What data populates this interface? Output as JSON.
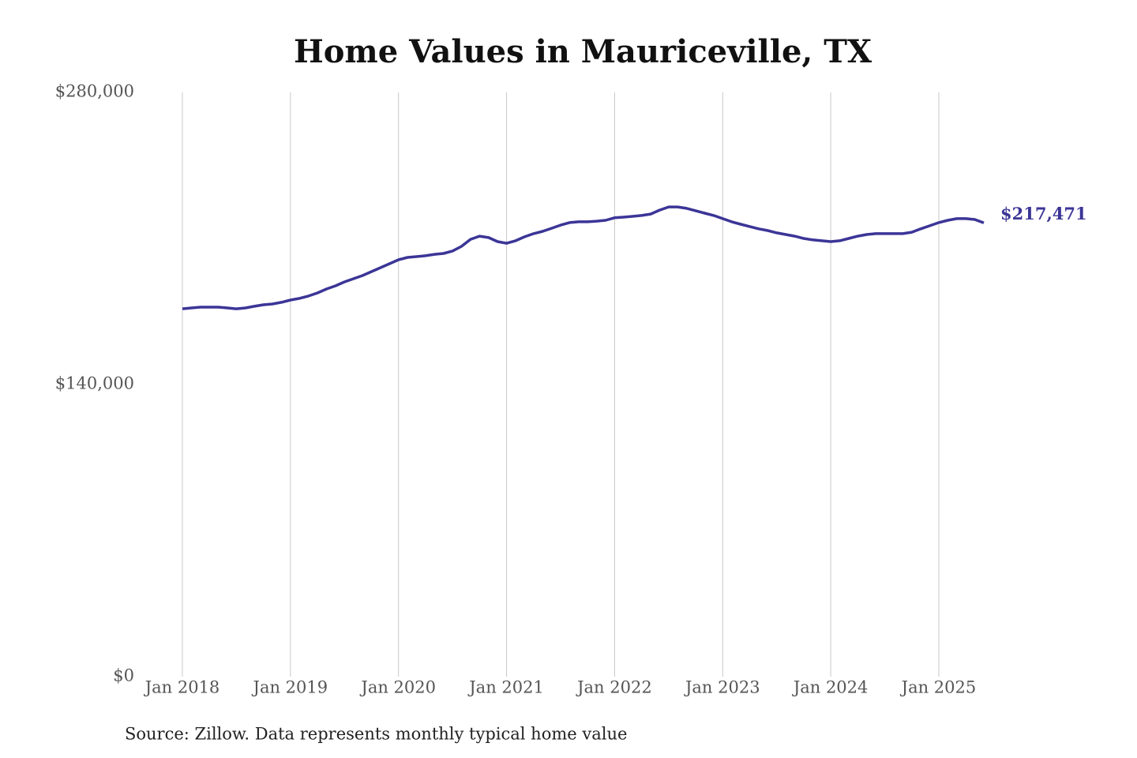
{
  "chart_data": {
    "type": "line",
    "title": "Home Values in Mauriceville, TX",
    "source": "Source: Zillow. Data represents monthly typical home value",
    "x": [
      "2018-01",
      "2018-02",
      "2018-03",
      "2018-04",
      "2018-05",
      "2018-06",
      "2018-07",
      "2018-08",
      "2018-09",
      "2018-10",
      "2018-11",
      "2018-12",
      "2019-01",
      "2019-02",
      "2019-03",
      "2019-04",
      "2019-05",
      "2019-06",
      "2019-07",
      "2019-08",
      "2019-09",
      "2019-10",
      "2019-11",
      "2019-12",
      "2020-01",
      "2020-02",
      "2020-03",
      "2020-04",
      "2020-05",
      "2020-06",
      "2020-07",
      "2020-08",
      "2020-09",
      "2020-10",
      "2020-11",
      "2020-12",
      "2021-01",
      "2021-02",
      "2021-03",
      "2021-04",
      "2021-05",
      "2021-06",
      "2021-07",
      "2021-08",
      "2021-09",
      "2021-10",
      "2021-11",
      "2021-12",
      "2022-01",
      "2022-02",
      "2022-03",
      "2022-04",
      "2022-05",
      "2022-06",
      "2022-07",
      "2022-08",
      "2022-09",
      "2022-10",
      "2022-11",
      "2022-12",
      "2023-01",
      "2023-02",
      "2023-03",
      "2023-04",
      "2023-05",
      "2023-06",
      "2023-07",
      "2023-08",
      "2023-09",
      "2023-10",
      "2023-11",
      "2023-12",
      "2024-01",
      "2024-02",
      "2024-03",
      "2024-04",
      "2024-05",
      "2024-06",
      "2024-07",
      "2024-08",
      "2024-09",
      "2024-10",
      "2024-11",
      "2024-12",
      "2025-01",
      "2025-02",
      "2025-03",
      "2025-04",
      "2025-05",
      "2025-06"
    ],
    "series": [
      {
        "color": "#3b3597",
        "values": [
          176300,
          176700,
          177100,
          177100,
          177100,
          176700,
          176300,
          176700,
          177500,
          178200,
          178600,
          179400,
          180500,
          181300,
          182400,
          183900,
          185800,
          187300,
          189200,
          190700,
          192200,
          194100,
          196000,
          197900,
          199800,
          200900,
          201300,
          201700,
          202400,
          202800,
          204000,
          206200,
          209600,
          211100,
          210400,
          208500,
          207700,
          208900,
          210800,
          212300,
          213400,
          214900,
          216400,
          217600,
          218000,
          218000,
          218300,
          218700,
          219900,
          220200,
          220600,
          221000,
          221700,
          223600,
          225100,
          225100,
          224400,
          223300,
          222100,
          221000,
          219500,
          218000,
          216800,
          215700,
          214600,
          213800,
          212700,
          211900,
          211100,
          210000,
          209300,
          208900,
          208500,
          208900,
          210000,
          211100,
          211900,
          212300,
          212300,
          212300,
          212300,
          213000,
          214600,
          216100,
          217600,
          218700,
          219500,
          219500,
          219100,
          217471
        ],
        "value_labels": [
          null,
          null,
          null,
          null,
          null,
          null,
          null,
          null,
          null,
          null,
          null,
          null,
          null,
          null,
          null,
          null,
          null,
          null,
          null,
          null,
          null,
          null,
          null,
          null,
          null,
          null,
          null,
          null,
          null,
          null,
          null,
          null,
          null,
          null,
          null,
          null,
          null,
          null,
          null,
          null,
          null,
          null,
          null,
          null,
          null,
          null,
          null,
          null,
          null,
          null,
          null,
          null,
          null,
          null,
          null,
          null,
          null,
          null,
          null,
          null,
          null,
          null,
          null,
          null,
          null,
          null,
          null,
          null,
          null,
          null,
          null,
          null,
          null,
          null,
          null,
          null,
          null,
          null,
          null,
          null,
          null,
          null,
          null,
          null,
          null,
          null,
          null,
          null,
          null,
          "$217,471"
        ]
      }
    ],
    "xlim": [
      "2018-01",
      "2025-06"
    ],
    "xticks": [
      {
        "value": "2018-01",
        "label": "Jan 2018"
      },
      {
        "value": "2019-01",
        "label": "Jan 2019"
      },
      {
        "value": "2020-01",
        "label": "Jan 2020"
      },
      {
        "value": "2021-01",
        "label": "Jan 2021"
      },
      {
        "value": "2022-01",
        "label": "Jan 2022"
      },
      {
        "value": "2023-01",
        "label": "Jan 2023"
      },
      {
        "value": "2024-01",
        "label": "Jan 2024"
      },
      {
        "value": "2025-01",
        "label": "Jan 2025"
      }
    ],
    "ylim": [
      0,
      280000
    ],
    "yticks": [
      {
        "value": 0,
        "label": "$0"
      },
      {
        "value": 140000,
        "label": "$140,000"
      },
      {
        "value": 280000,
        "label": "$280,000"
      }
    ],
    "grid": "x"
  }
}
